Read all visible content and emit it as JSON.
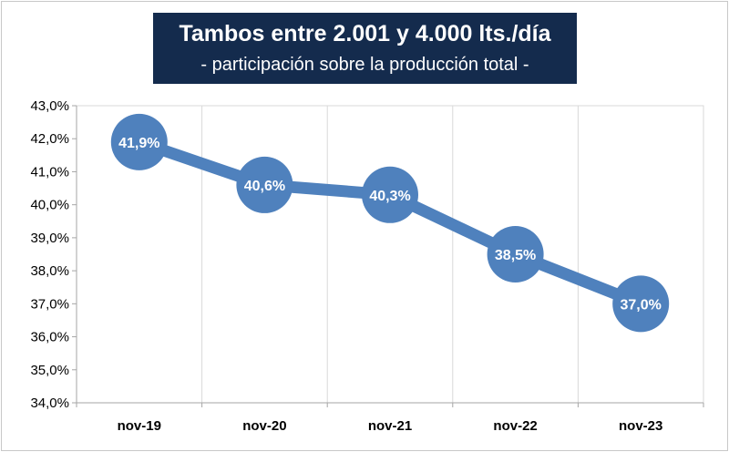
{
  "chart_data": {
    "type": "line",
    "title": "Tambos entre 2.001 y 4.000 lts./día",
    "subtitle": "- participación sobre la producción total -",
    "categories": [
      "nov-19",
      "nov-20",
      "nov-21",
      "nov-22",
      "nov-23"
    ],
    "series": [
      {
        "values": [
          41.9,
          40.6,
          40.3,
          38.5,
          37.0
        ]
      }
    ],
    "data_labels": [
      "41,9%",
      "40,6%",
      "40,3%",
      "38,5%",
      "37,0%"
    ],
    "y_ticks": [
      "34,0%",
      "35,0%",
      "36,0%",
      "37,0%",
      "38,0%",
      "39,0%",
      "40,0%",
      "41,0%",
      "42,0%",
      "43,0%"
    ],
    "ylim": [
      34,
      43
    ],
    "xlabel": "",
    "ylabel": "",
    "grid": {
      "vertical": true,
      "horizontal": false
    },
    "legend": "none",
    "colors": {
      "series": "#4f81bd",
      "title_bg": "#142b4d",
      "grid": "#d9d9d9"
    }
  }
}
